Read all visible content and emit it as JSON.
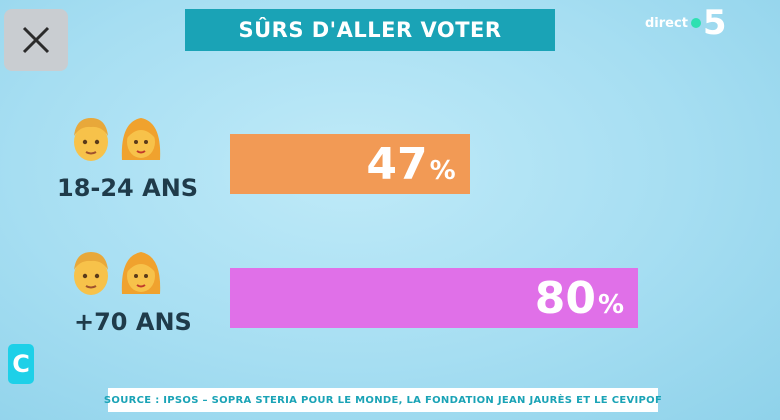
{
  "title": "SÛRS D'ALLER VOTER",
  "channel": {
    "direct": "direct",
    "number": "5"
  },
  "side_logo": "C",
  "source": "SOURCE : IPSOS – SOPRA STERIA POUR LE MONDE, LA FONDATION JEAN JAURÈS ET LE CEVIPOF",
  "colors": {
    "title_bg": "#1aa3b6",
    "bar_young": "#f29a55",
    "bar_old": "#e070e8"
  },
  "icons": [
    "close-icon",
    "man-emoji-icon",
    "woman-emoji-icon"
  ],
  "chart_data": {
    "type": "bar",
    "orientation": "horizontal",
    "categories": [
      "18-24 ANS",
      "+70 ANS"
    ],
    "values": [
      47,
      80
    ],
    "value_labels": [
      "47",
      "80"
    ],
    "unit": "%",
    "title": "SÛRS D'ALLER VOTER",
    "xlim": [
      0,
      100
    ]
  }
}
